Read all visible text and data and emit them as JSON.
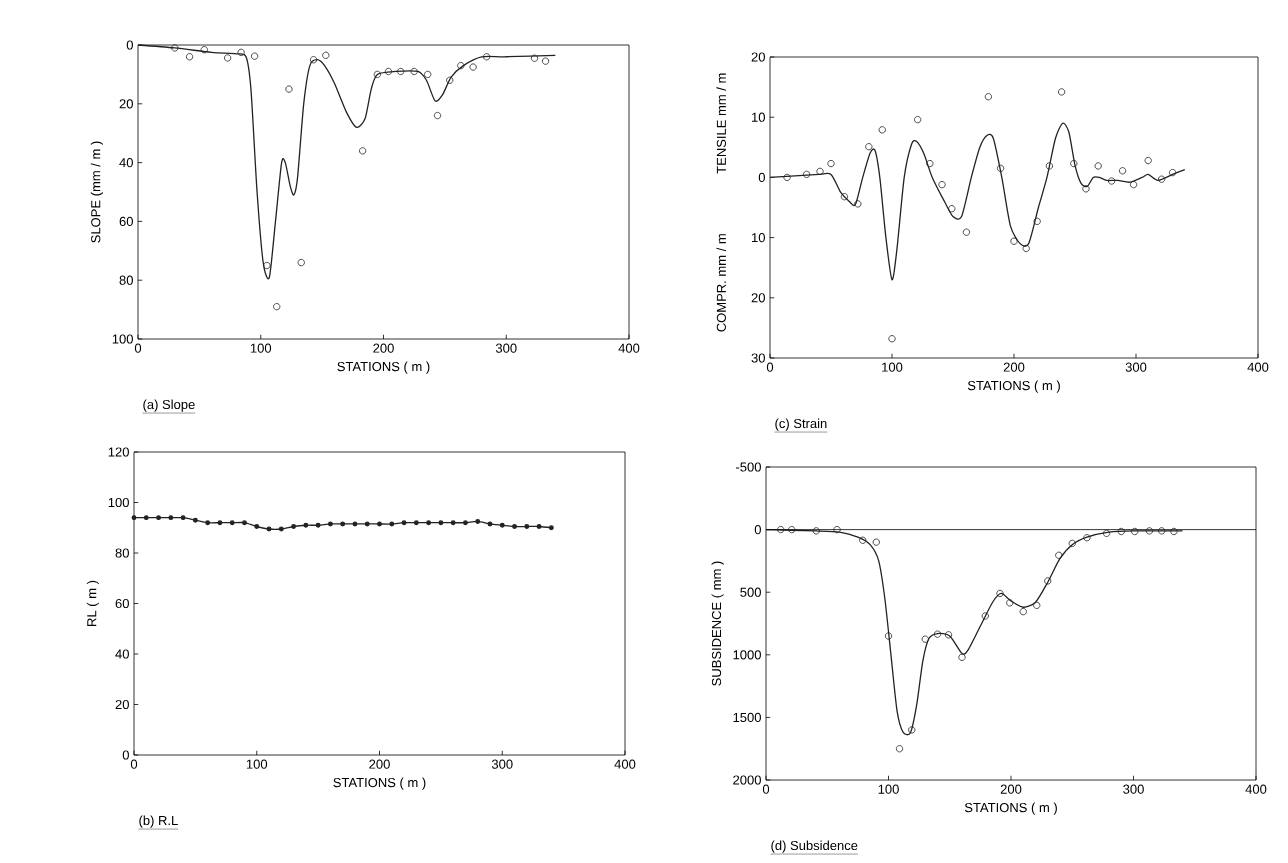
{
  "chart_data": [
    {
      "type": "line",
      "title": "(a) Slope",
      "xlabel": "STATIONS ( m )",
      "ylabel": "SLOPE (mm / m )",
      "xlim": [
        0,
        400
      ],
      "ylim": [
        100,
        0
      ],
      "xticks": [
        0,
        100,
        200,
        300,
        400
      ],
      "yticks": [
        0,
        20,
        40,
        60,
        80,
        100
      ],
      "series": [
        {
          "type": "scatter",
          "marker": "circle",
          "color": "#222222",
          "x": [
            30,
            42,
            54,
            73,
            84,
            95,
            105,
            113,
            123,
            133,
            143,
            153,
            183,
            195,
            204,
            214,
            225,
            236,
            244,
            254,
            263,
            273,
            284,
            323,
            332
          ],
          "values": [
            1,
            4,
            1.6,
            4.4,
            2.5,
            3.8,
            75,
            89,
            15,
            74,
            5,
            3.5,
            36,
            10,
            9,
            9,
            9,
            10,
            24,
            12,
            7,
            7.5,
            4,
            4.5,
            5.5
          ]
        },
        {
          "color": "#222222",
          "x": [
            0,
            30,
            60,
            80,
            88,
            92,
            97,
            102,
            107,
            112,
            117,
            120,
            124,
            127,
            130,
            135,
            140,
            146,
            152,
            160,
            170,
            178,
            185,
            190,
            195,
            210,
            228,
            235,
            242,
            248,
            255,
            265,
            280,
            300,
            340
          ],
          "values": [
            0,
            1,
            2.5,
            3,
            4,
            15,
            50,
            74,
            79,
            60,
            40,
            40,
            48,
            51,
            45,
            20,
            7,
            5,
            7,
            13,
            23,
            28,
            25,
            15,
            10,
            9,
            9,
            12,
            19,
            17,
            11,
            7,
            4,
            4,
            3.5
          ]
        }
      ]
    },
    {
      "type": "line",
      "title": "(c) Strain",
      "xlabel": "STATIONS ( m )",
      "ylabel": "TENSILE mm / m",
      "annotations": [
        "COMPR. mm / m"
      ],
      "xlim": [
        0,
        400
      ],
      "ylim": [
        -30,
        20
      ],
      "xticks": [
        0,
        100,
        200,
        300,
        400
      ],
      "yticks": [
        {
          "value": -30,
          "label": "30"
        },
        {
          "value": -20,
          "label": "20"
        },
        {
          "value": -10,
          "label": "10"
        },
        0,
        10,
        20
      ],
      "series": [
        {
          "type": "scatter",
          "marker": "circle",
          "color": "#222222",
          "x": [
            14,
            30,
            41,
            50,
            61,
            72,
            81,
            92,
            100,
            121,
            131,
            141,
            149,
            161,
            179,
            189,
            200,
            210,
            219,
            229,
            239,
            249,
            259,
            269,
            280,
            289,
            298,
            310,
            321,
            330
          ],
          "values": [
            0,
            0.5,
            1,
            2.3,
            -3.2,
            -4.4,
            5.1,
            7.9,
            -26.8,
            9.6,
            2.3,
            -1.2,
            -5.2,
            -9.1,
            13.4,
            1.5,
            -10.6,
            -11.8,
            -7.3,
            1.9,
            14.2,
            2.3,
            -1.9,
            1.9,
            -0.6,
            1.1,
            -1.2,
            2.8,
            -0.3,
            0.8
          ]
        },
        {
          "color": "#222222",
          "x": [
            0,
            40,
            50,
            58,
            65,
            70,
            76,
            82,
            86,
            90,
            95,
            100,
            104,
            110,
            116,
            120,
            126,
            133,
            143,
            150,
            157,
            165,
            172,
            178,
            183,
            190,
            197,
            205,
            212,
            220,
            227,
            234,
            240,
            245,
            250,
            255,
            260,
            265,
            270,
            276,
            285,
            295,
            305,
            310,
            318,
            330,
            340
          ],
          "values": [
            0,
            0.5,
            0.5,
            -2.5,
            -4,
            -4.5,
            0,
            4,
            4.5,
            0,
            -10,
            -17,
            -12,
            0,
            5.5,
            6,
            4,
            0,
            -4,
            -6.5,
            -6.5,
            0,
            5,
            7,
            6.5,
            0,
            -8,
            -11,
            -11,
            -5,
            0,
            6.5,
            9,
            7.5,
            2,
            -1,
            -1.5,
            0,
            0,
            -0.5,
            -0.5,
            -0.8,
            0,
            0.5,
            -0.5,
            0.5,
            1.3
          ]
        }
      ]
    },
    {
      "type": "line",
      "title": "(b) R.L",
      "xlabel": "STATIONS ( m )",
      "ylabel": "RL ( m )",
      "xlim": [
        0,
        400
      ],
      "ylim": [
        0,
        120
      ],
      "xticks": [
        0,
        100,
        200,
        300,
        400
      ],
      "yticks": [
        0,
        20,
        40,
        60,
        80,
        100,
        120
      ],
      "series": [
        {
          "marker": "circle",
          "color": "#222222",
          "x": [
            0,
            10,
            20,
            30,
            40,
            50,
            60,
            70,
            80,
            90,
            100,
            110,
            120,
            130,
            140,
            150,
            160,
            170,
            180,
            190,
            200,
            210,
            220,
            230,
            240,
            250,
            260,
            270,
            280,
            290,
            300,
            310,
            320,
            330,
            340
          ],
          "values": [
            94,
            94,
            94,
            94,
            94,
            93,
            92,
            92,
            92,
            92,
            90.5,
            89.5,
            89.5,
            90.5,
            91,
            91,
            91.5,
            91.5,
            91.5,
            91.5,
            91.5,
            91.5,
            92,
            92,
            92,
            92,
            92,
            92,
            92.5,
            91.5,
            91,
            90.5,
            90.5,
            90.5,
            90
          ]
        }
      ]
    },
    {
      "type": "line",
      "title": "(d) Subsidence",
      "xlabel": "STATIONS ( m )",
      "ylabel": "SUBSIDENCE ( mm )",
      "xlim": [
        0,
        400
      ],
      "ylim": [
        2000,
        -500
      ],
      "xticks": [
        0,
        100,
        200,
        300,
        400
      ],
      "yticks": [
        -500,
        0,
        500,
        1000,
        1500,
        2000
      ],
      "ref_lines": [
        {
          "axis": "y",
          "value": 0
        }
      ],
      "series": [
        {
          "type": "scatter",
          "marker": "circle",
          "color": "#222222",
          "x": [
            12,
            21,
            41,
            58,
            79,
            90,
            100,
            109,
            119,
            130,
            140,
            149,
            160,
            179,
            191,
            199,
            210,
            221,
            230,
            239,
            250,
            262,
            278,
            290,
            301,
            313,
            323,
            333
          ],
          "values": [
            0,
            0,
            10,
            0,
            85,
            100,
            850,
            1750,
            1600,
            875,
            835,
            840,
            1020,
            690,
            510,
            585,
            655,
            605,
            410,
            205,
            110,
            65,
            30,
            15,
            15,
            10,
            10,
            15
          ]
        },
        {
          "color": "#222222",
          "x": [
            0,
            40,
            60,
            75,
            85,
            92,
            97,
            102,
            107,
            112,
            118,
            123,
            128,
            133,
            140,
            150,
            160,
            165,
            175,
            185,
            192,
            200,
            210,
            220,
            230,
            240,
            250,
            262,
            280,
            300,
            340
          ],
          "values": [
            0,
            10,
            20,
            60,
            120,
            250,
            550,
            1000,
            1450,
            1620,
            1620,
            1400,
            1050,
            870,
            830,
            850,
            990,
            960,
            770,
            580,
            510,
            570,
            620,
            580,
            420,
            230,
            120,
            60,
            20,
            10,
            10
          ]
        }
      ]
    }
  ]
}
